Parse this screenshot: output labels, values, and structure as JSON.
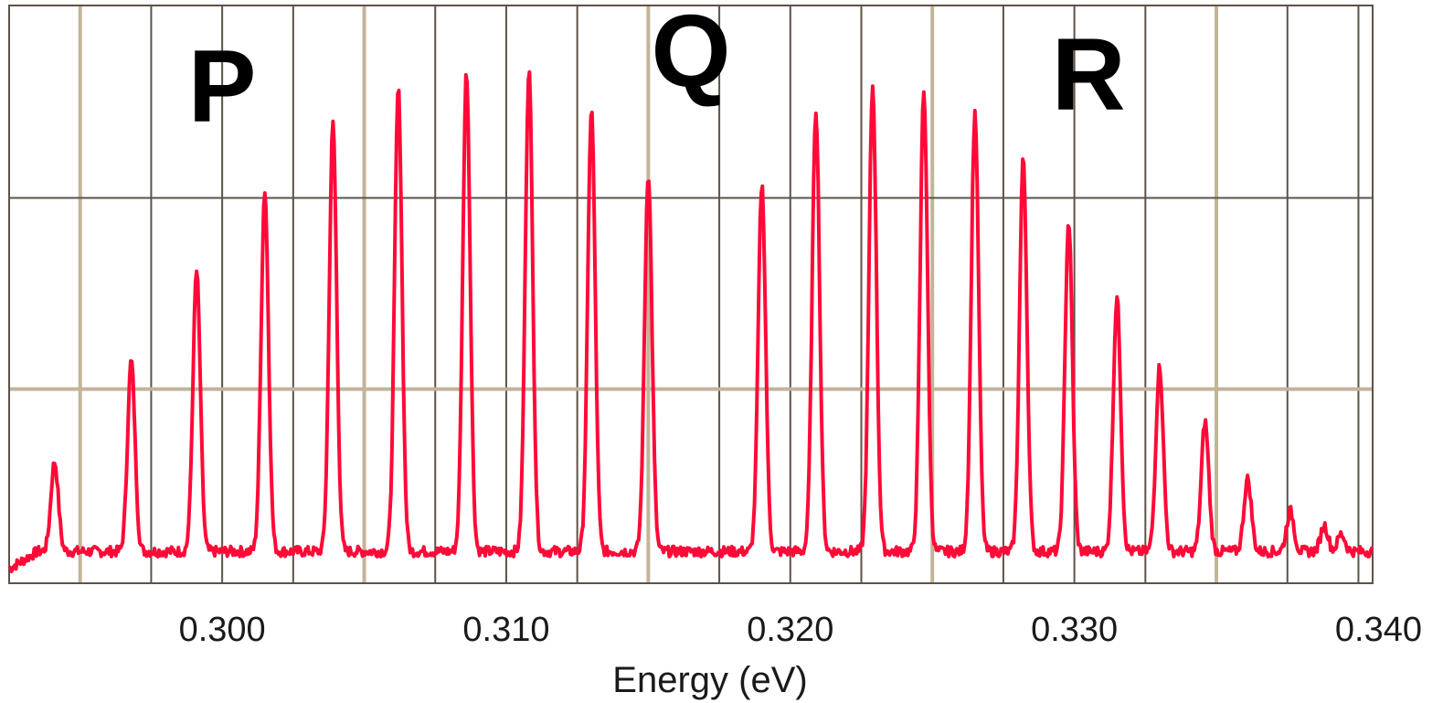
{
  "chart_data": {
    "type": "line",
    "title": "",
    "xlabel": "Energy (eV)",
    "ylabel": "",
    "xlim": [
      0.2925,
      0.3405
    ],
    "ylim": [
      0,
      1
    ],
    "x_ticks": [
      0.3,
      0.31,
      0.32,
      0.33,
      0.34
    ],
    "x_tick_labels": [
      "0.300",
      "0.310",
      "0.320",
      "0.330",
      "0.340"
    ],
    "grid": true,
    "annotations": [
      {
        "text": "P",
        "x": 0.3,
        "y": 0.8
      },
      {
        "text": "Q",
        "x": 0.3165,
        "y": 0.86
      },
      {
        "text": "R",
        "x": 0.3305,
        "y": 0.82
      }
    ],
    "series": [
      {
        "baseline": 0.055,
        "peaks": [
          {
            "x": 0.2941,
            "y": 0.21
          },
          {
            "x": 0.2968,
            "y": 0.385
          },
          {
            "x": 0.2991,
            "y": 0.54
          },
          {
            "x": 0.3015,
            "y": 0.68
          },
          {
            "x": 0.3039,
            "y": 0.795
          },
          {
            "x": 0.3062,
            "y": 0.855
          },
          {
            "x": 0.3086,
            "y": 0.885
          },
          {
            "x": 0.3108,
            "y": 0.89
          },
          {
            "x": 0.313,
            "y": 0.82
          },
          {
            "x": 0.315,
            "y": 0.71
          },
          {
            "x": 0.319,
            "y": 0.69
          },
          {
            "x": 0.3209,
            "y": 0.82
          },
          {
            "x": 0.3229,
            "y": 0.86
          },
          {
            "x": 0.3247,
            "y": 0.855
          },
          {
            "x": 0.3265,
            "y": 0.815
          },
          {
            "x": 0.3282,
            "y": 0.735
          },
          {
            "x": 0.3298,
            "y": 0.625
          },
          {
            "x": 0.3315,
            "y": 0.495
          },
          {
            "x": 0.333,
            "y": 0.375
          },
          {
            "x": 0.3346,
            "y": 0.28
          },
          {
            "x": 0.3361,
            "y": 0.18
          },
          {
            "x": 0.3376,
            "y": 0.125
          },
          {
            "x": 0.3388,
            "y": 0.1
          },
          {
            "x": 0.3394,
            "y": 0.085
          }
        ]
      }
    ]
  },
  "colors": {
    "spectrum": "#ff0a38",
    "grid_major": "#c2b499",
    "grid_minor": "#5e5246",
    "frame": "#5e5246",
    "text": "#1a1a1a"
  }
}
